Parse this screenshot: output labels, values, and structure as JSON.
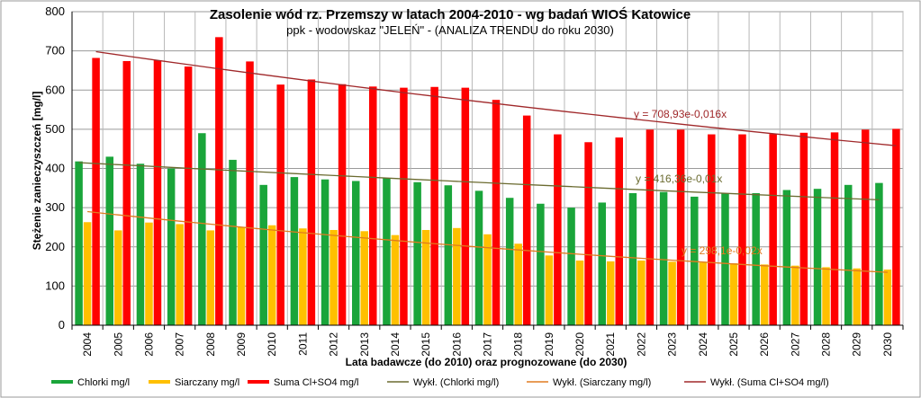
{
  "chart_data": {
    "type": "bar",
    "title": "Zasolenie wód rz. Przemszy w latach 2004-2010 - wg badań WIOŚ Katowice",
    "subtitle": "ppk - wodowskaz \"JELEŃ\" - (ANALIZA TRENDU do roku 2030)",
    "xlabel": "Lata badawcze (do 2010) oraz prognozowane (do 2030)",
    "ylabel": "Stężenie zanieczyszczeń [mg/l]",
    "ylim": [
      0,
      800
    ],
    "yticks": [
      0,
      100,
      200,
      300,
      400,
      500,
      600,
      700,
      800
    ],
    "grid": true,
    "legend_position": "bottom",
    "categories": [
      "2004",
      "2005",
      "2006",
      "2007",
      "2008",
      "2009",
      "2010",
      "2011",
      "2012",
      "2013",
      "2014",
      "2015",
      "2016",
      "2017",
      "2018",
      "2019",
      "2020",
      "2021",
      "2022",
      "2023",
      "2024",
      "2025",
      "2026",
      "2027",
      "2028",
      "2029",
      "2030"
    ],
    "series": [
      {
        "name": "Chlorki mg/l",
        "color": "#1aa53a",
        "values": [
          418,
          430,
          412,
          400,
          490,
          422,
          358,
          378,
          372,
          368,
          375,
          365,
          357,
          343,
          325,
          310,
          300,
          313,
          337,
          340,
          328,
          336,
          337,
          345,
          348,
          358,
          363
        ]
      },
      {
        "name": "Siarczany mg/l",
        "color": "#ffc000",
        "values": [
          263,
          242,
          262,
          258,
          242,
          250,
          255,
          247,
          243,
          240,
          230,
          243,
          248,
          232,
          208,
          178,
          165,
          163,
          165,
          162,
          160,
          158,
          155,
          152,
          148,
          145,
          142
        ]
      },
      {
        "name": "Suma Cl+SO4 mg/l",
        "color": "#ff0000",
        "values": [
          682,
          674,
          676,
          660,
          735,
          673,
          614,
          627,
          615,
          609,
          606,
          608,
          606,
          575,
          535,
          487,
          467,
          479,
          499,
          499,
          487,
          487,
          488,
          491,
          492,
          499,
          501
        ]
      }
    ],
    "trendlines": [
      {
        "name": "Wykł. (Chlorki mg/l)",
        "color": "#6b6b30",
        "start": 415,
        "end": 320,
        "equation": "y = 416,36e-0,01x"
      },
      {
        "name": "Wykł. (Siarczany mg/l)",
        "color": "#e07b20",
        "start": 290,
        "end": 135,
        "equation": "y = 298,1e-0,02x"
      },
      {
        "name": "Wykł. (Suma Cl+SO4 mg/l)",
        "color": "#a0282a",
        "start": 698,
        "end": 458,
        "equation": "y = 708,93e-0,016x"
      }
    ]
  }
}
